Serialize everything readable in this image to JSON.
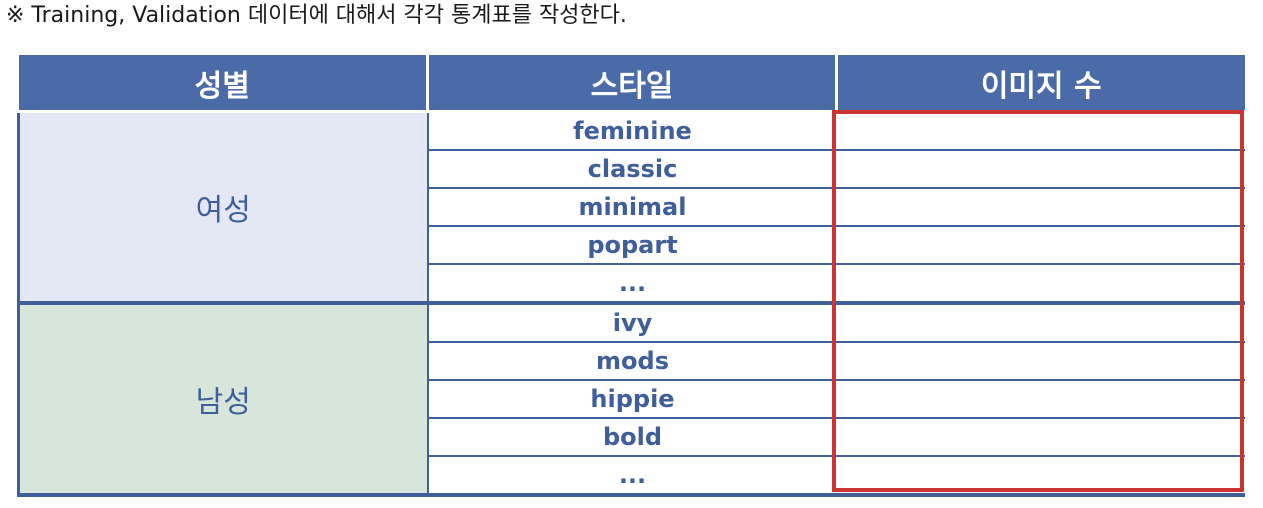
{
  "note": "※ Training, Validation 데이터에 대해서 각각 통계표를 작성한다.",
  "table": {
    "headers": [
      "성별",
      "스타일",
      "이미지 수"
    ],
    "groups": [
      {
        "gender": "여성",
        "styles": [
          "feminine",
          "classic",
          "minimal",
          "popart",
          "..."
        ]
      },
      {
        "gender": "남성",
        "styles": [
          "ivy",
          "mods",
          "hippie",
          "bold",
          "..."
        ]
      }
    ]
  },
  "colors": {
    "header_bg": "#4a6aa8",
    "text_blue": "#3f5e9c",
    "female_bg": "#e4e8f5",
    "male_bg": "#d6e6db",
    "highlight": "#cc3333"
  }
}
